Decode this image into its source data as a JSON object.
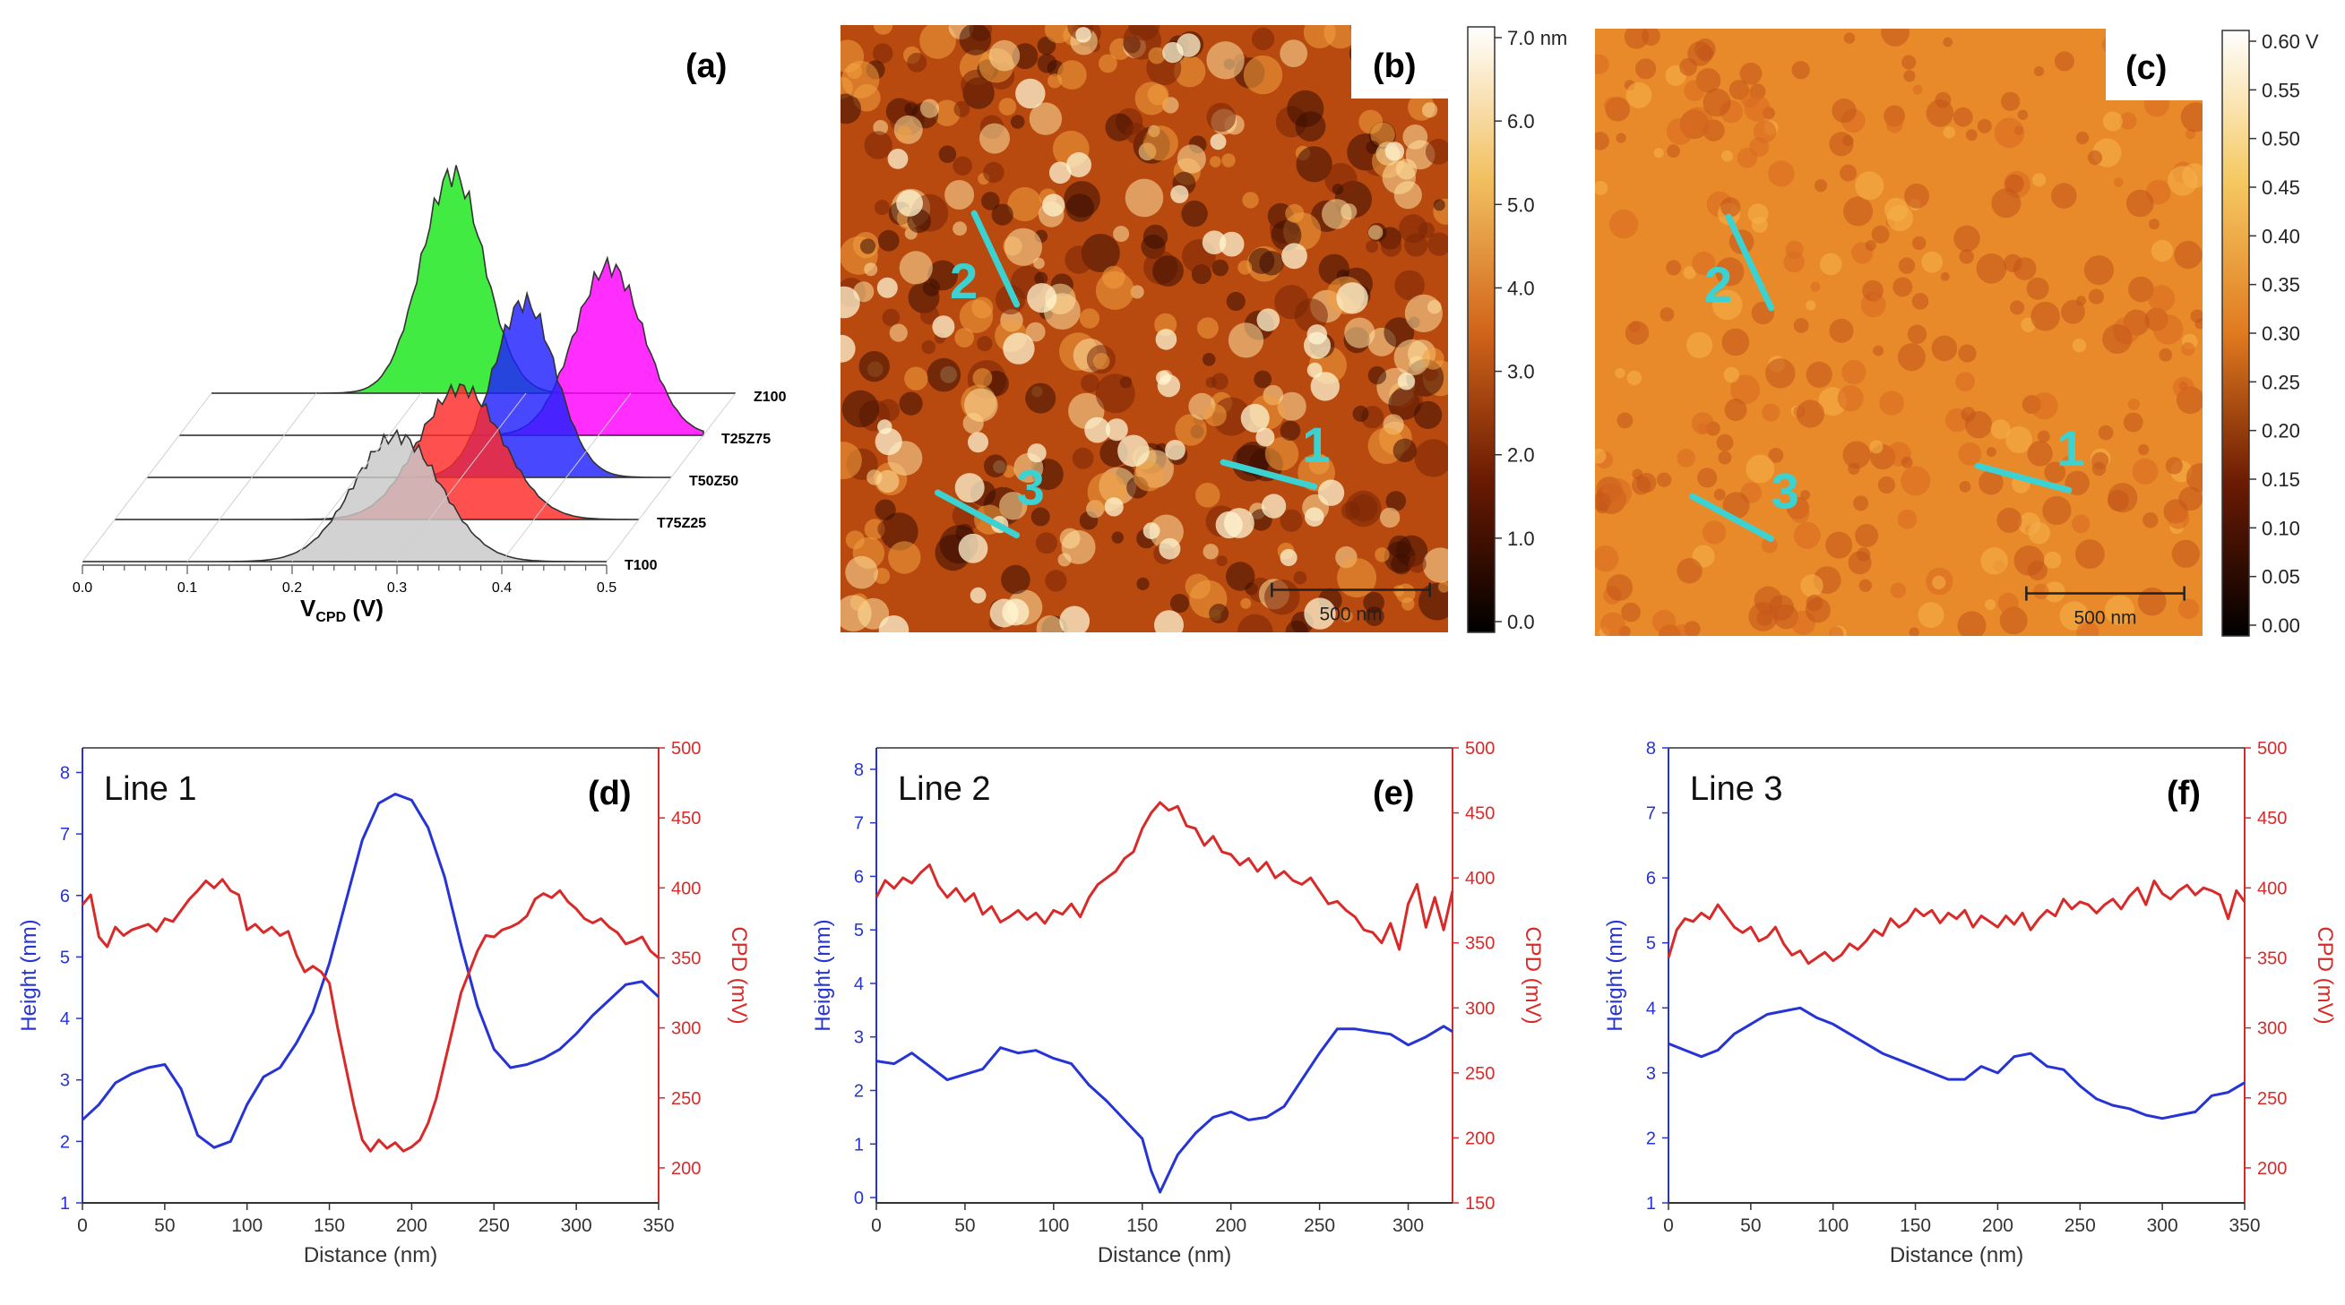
{
  "figure": {
    "panels": {
      "a": "(a)",
      "b": "(b)",
      "c": "(c)",
      "d": "(d)",
      "e": "(e)",
      "f": "(f)"
    }
  },
  "chart_data": [
    {
      "id": "a",
      "type": "area",
      "subtype": "waterfall-histogram",
      "title": "",
      "xlabel_main": "V",
      "xlabel_sub": "CPD",
      "xlabel_unit": " (V)",
      "xlim": [
        0.0,
        0.5
      ],
      "xticks": [
        "0.0",
        "0.1",
        "0.2",
        "0.3",
        "0.4",
        "0.5"
      ],
      "series": [
        {
          "name": "T100",
          "color": "#c8c8c8",
          "center": 0.3,
          "sigma": 0.042,
          "height": 1.0
        },
        {
          "name": "T75Z25",
          "color": "#ff2a2a",
          "center": 0.33,
          "sigma": 0.04,
          "height": 1.05
        },
        {
          "name": "T50Z50",
          "color": "#2020ff",
          "center": 0.36,
          "sigma": 0.03,
          "height": 1.4
        },
        {
          "name": "T25Z75",
          "color": "#ff00ff",
          "center": 0.41,
          "sigma": 0.033,
          "height": 1.35
        },
        {
          "name": "Z100",
          "color": "#19e619",
          "center": 0.23,
          "sigma": 0.03,
          "height": 1.75
        }
      ]
    },
    {
      "id": "b",
      "type": "heatmap",
      "subtype": "topography-map",
      "colorbar_ticks": [
        "7.0 nm",
        "6.0",
        "5.0",
        "4.0",
        "3.0",
        "2.0",
        "1.0",
        "0.0"
      ],
      "colorbar_range": [
        0.0,
        7.0
      ],
      "scale_bar": "500 nm",
      "line_labels": [
        "1",
        "2",
        "3"
      ],
      "colors": {
        "low": "#200600",
        "mid": "#d2661a",
        "high": "#fff4c8",
        "line": "#3cd2d2"
      }
    },
    {
      "id": "c",
      "type": "heatmap",
      "subtype": "kpfm-map",
      "colorbar_ticks": [
        "0.60 V",
        "0.55",
        "0.50",
        "0.45",
        "0.40",
        "0.35",
        "0.30",
        "0.25",
        "0.20",
        "0.15",
        "0.10",
        "0.05",
        "0.00"
      ],
      "colorbar_range": [
        0.0,
        0.6
      ],
      "scale_bar": "500 nm",
      "line_labels": [
        "1",
        "2",
        "3"
      ],
      "colors": {
        "low": "#200600",
        "mid": "#e88a2a",
        "high": "#fff4c8",
        "line": "#3cd2d2"
      }
    },
    {
      "id": "d",
      "type": "line",
      "title": "Line 1",
      "xlabel": "Distance (nm)",
      "ylabel_left": "Height (nm)",
      "ylabel_right": "CPD (mV)",
      "xlim": [
        0,
        350
      ],
      "ylim_left": [
        1,
        8.4
      ],
      "ylim_right": [
        175,
        500
      ],
      "xticks": [
        0,
        50,
        100,
        150,
        200,
        250,
        300,
        350
      ],
      "yticks_left": [
        1,
        2,
        3,
        4,
        5,
        6,
        7,
        8
      ],
      "yticks_right": [
        200,
        250,
        300,
        350,
        400,
        450,
        500
      ],
      "series": [
        {
          "name": "Height",
          "axis": "left",
          "color": "#2634d6",
          "x": [
            0,
            10,
            20,
            30,
            40,
            50,
            60,
            70,
            80,
            90,
            100,
            110,
            120,
            130,
            140,
            150,
            160,
            170,
            180,
            190,
            200,
            210,
            220,
            230,
            240,
            250,
            260,
            270,
            280,
            290,
            300,
            310,
            320,
            330,
            340,
            350
          ],
          "y": [
            2.35,
            2.6,
            2.95,
            3.1,
            3.2,
            3.25,
            2.85,
            2.1,
            1.9,
            2.0,
            2.6,
            3.05,
            3.2,
            3.6,
            4.1,
            4.9,
            5.9,
            6.9,
            7.5,
            7.65,
            7.55,
            7.1,
            6.3,
            5.2,
            4.2,
            3.5,
            3.2,
            3.25,
            3.35,
            3.5,
            3.75,
            4.05,
            4.3,
            4.55,
            4.6,
            4.35
          ]
        },
        {
          "name": "CPD",
          "axis": "right",
          "color": "#d92a2a",
          "x": [
            0,
            5,
            10,
            15,
            20,
            25,
            30,
            35,
            40,
            45,
            50,
            55,
            60,
            65,
            70,
            75,
            80,
            85,
            90,
            95,
            100,
            105,
            110,
            115,
            120,
            125,
            130,
            135,
            140,
            145,
            150,
            155,
            160,
            165,
            170,
            175,
            180,
            185,
            190,
            195,
            200,
            205,
            210,
            215,
            220,
            225,
            230,
            235,
            240,
            245,
            250,
            255,
            260,
            265,
            270,
            275,
            280,
            285,
            290,
            295,
            300,
            305,
            310,
            315,
            320,
            325,
            330,
            335,
            340,
            345,
            350
          ],
          "y": [
            388,
            395,
            365,
            358,
            372,
            366,
            370,
            372,
            374,
            369,
            378,
            376,
            384,
            392,
            398,
            405,
            400,
            406,
            398,
            395,
            370,
            374,
            368,
            372,
            366,
            369,
            352,
            340,
            344,
            340,
            332,
            300,
            272,
            244,
            220,
            212,
            220,
            214,
            218,
            212,
            215,
            220,
            232,
            250,
            275,
            300,
            325,
            340,
            355,
            366,
            365,
            370,
            372,
            375,
            380,
            392,
            396,
            393,
            398,
            390,
            385,
            378,
            375,
            378,
            372,
            368,
            360,
            362,
            365,
            355,
            350
          ]
        }
      ]
    },
    {
      "id": "e",
      "type": "line",
      "title": "Line 2",
      "xlabel": "Distance (nm)",
      "ylabel_left": "Height (nm)",
      "ylabel_right": "CPD (mV)",
      "xlim": [
        0,
        325
      ],
      "ylim_left": [
        -0.1,
        8.4
      ],
      "ylim_right": [
        150,
        500
      ],
      "xticks": [
        0,
        50,
        100,
        150,
        200,
        250,
        300
      ],
      "yticks_left": [
        0,
        1,
        2,
        3,
        4,
        5,
        6,
        7,
        8
      ],
      "yticks_right": [
        150,
        200,
        250,
        300,
        350,
        400,
        450,
        500
      ],
      "series": [
        {
          "name": "Height",
          "axis": "left",
          "color": "#2634d6",
          "x": [
            0,
            10,
            20,
            30,
            40,
            50,
            60,
            70,
            80,
            90,
            100,
            110,
            120,
            130,
            140,
            150,
            155,
            160,
            165,
            170,
            180,
            190,
            200,
            210,
            220,
            230,
            240,
            250,
            260,
            270,
            280,
            290,
            300,
            310,
            320,
            325
          ],
          "y": [
            2.55,
            2.5,
            2.7,
            2.45,
            2.2,
            2.3,
            2.4,
            2.8,
            2.7,
            2.75,
            2.6,
            2.5,
            2.1,
            1.8,
            1.45,
            1.1,
            0.5,
            0.1,
            0.45,
            0.8,
            1.2,
            1.5,
            1.6,
            1.45,
            1.5,
            1.7,
            2.2,
            2.7,
            3.15,
            3.15,
            3.1,
            3.05,
            2.85,
            3.0,
            3.2,
            3.1
          ]
        },
        {
          "name": "CPD",
          "axis": "right",
          "color": "#d92a2a",
          "x": [
            0,
            5,
            10,
            15,
            20,
            25,
            30,
            35,
            40,
            45,
            50,
            55,
            60,
            65,
            70,
            75,
            80,
            85,
            90,
            95,
            100,
            105,
            110,
            115,
            120,
            125,
            130,
            135,
            140,
            145,
            150,
            155,
            160,
            165,
            170,
            175,
            180,
            185,
            190,
            195,
            200,
            205,
            210,
            215,
            220,
            225,
            230,
            235,
            240,
            245,
            250,
            255,
            260,
            265,
            270,
            275,
            280,
            285,
            290,
            295,
            300,
            305,
            310,
            315,
            320,
            325
          ],
          "y": [
            385,
            398,
            392,
            400,
            396,
            404,
            410,
            394,
            385,
            392,
            382,
            388,
            372,
            378,
            366,
            370,
            375,
            368,
            373,
            365,
            375,
            372,
            380,
            370,
            385,
            395,
            400,
            405,
            415,
            420,
            438,
            450,
            458,
            452,
            455,
            440,
            438,
            425,
            432,
            420,
            418,
            410,
            415,
            405,
            412,
            400,
            405,
            398,
            395,
            400,
            390,
            380,
            382,
            375,
            370,
            360,
            358,
            350,
            365,
            345,
            380,
            395,
            362,
            385,
            360,
            390
          ]
        }
      ]
    },
    {
      "id": "f",
      "type": "line",
      "title": "Line 3",
      "xlabel": "Distance (nm)",
      "ylabel_left": "Height (nm)",
      "ylabel_right": "CPD (mV)",
      "xlim": [
        0,
        350
      ],
      "ylim_left": [
        1,
        8
      ],
      "ylim_right": [
        175,
        500
      ],
      "xticks": [
        0,
        50,
        100,
        150,
        200,
        250,
        300,
        350
      ],
      "yticks_left": [
        1,
        2,
        3,
        4,
        5,
        6,
        7,
        8
      ],
      "yticks_right": [
        200,
        250,
        300,
        350,
        400,
        450,
        500
      ],
      "series": [
        {
          "name": "Height",
          "axis": "left",
          "color": "#2634d6",
          "x": [
            0,
            10,
            20,
            30,
            40,
            50,
            60,
            70,
            80,
            90,
            100,
            110,
            120,
            130,
            140,
            150,
            160,
            170,
            180,
            190,
            200,
            210,
            220,
            230,
            240,
            250,
            260,
            270,
            280,
            290,
            300,
            310,
            320,
            330,
            340,
            350
          ],
          "y": [
            3.45,
            3.35,
            3.25,
            3.35,
            3.6,
            3.75,
            3.9,
            3.95,
            4.0,
            3.85,
            3.75,
            3.6,
            3.45,
            3.3,
            3.2,
            3.1,
            3.0,
            2.9,
            2.9,
            3.1,
            3.0,
            3.25,
            3.3,
            3.1,
            3.05,
            2.8,
            2.6,
            2.5,
            2.45,
            2.35,
            2.3,
            2.35,
            2.4,
            2.65,
            2.7,
            2.85
          ]
        },
        {
          "name": "CPD",
          "axis": "right",
          "color": "#d92a2a",
          "x": [
            0,
            5,
            10,
            15,
            20,
            25,
            30,
            35,
            40,
            45,
            50,
            55,
            60,
            65,
            70,
            75,
            80,
            85,
            90,
            95,
            100,
            105,
            110,
            115,
            120,
            125,
            130,
            135,
            140,
            145,
            150,
            155,
            160,
            165,
            170,
            175,
            180,
            185,
            190,
            195,
            200,
            205,
            210,
            215,
            220,
            225,
            230,
            235,
            240,
            245,
            250,
            255,
            260,
            265,
            270,
            275,
            280,
            285,
            290,
            295,
            300,
            305,
            310,
            315,
            320,
            325,
            330,
            335,
            340,
            345,
            350
          ],
          "y": [
            350,
            370,
            378,
            376,
            382,
            378,
            388,
            380,
            372,
            368,
            372,
            362,
            365,
            372,
            360,
            352,
            355,
            346,
            350,
            354,
            348,
            352,
            360,
            356,
            362,
            370,
            366,
            378,
            372,
            376,
            385,
            380,
            384,
            375,
            382,
            378,
            384,
            372,
            380,
            376,
            372,
            380,
            374,
            382,
            370,
            378,
            384,
            380,
            392,
            385,
            390,
            388,
            382,
            388,
            392,
            385,
            394,
            400,
            388,
            405,
            396,
            392,
            398,
            402,
            395,
            400,
            398,
            395,
            378,
            398,
            390
          ]
        }
      ]
    }
  ]
}
